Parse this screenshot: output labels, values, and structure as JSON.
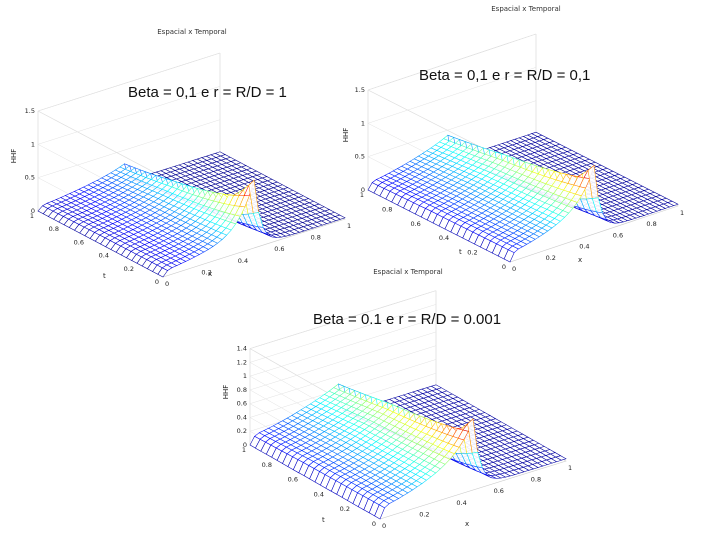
{
  "captions": {
    "top_left": "Beta = 0,1 e r = R/D = 1",
    "top_right": "Beta = 0,1 e r = R/D = 0,1",
    "bottom": "Beta = 0.1 e r = R/D = 0.001"
  },
  "chart_data": [
    {
      "type": "surface",
      "title": "Espacial x Temporal",
      "xlabel": "x",
      "ylabel": "t",
      "zlabel": "HHF",
      "zlim": [
        0,
        1.5
      ],
      "z_ticks": [
        "0",
        "0.5",
        "1",
        "1.5"
      ],
      "x_ticks": [
        "0",
        "0.2",
        "0.4",
        "0.6",
        "0.8",
        "1"
      ],
      "t_ticks": [
        "0",
        "0.2",
        "0.4",
        "0.6",
        "0.8",
        "1"
      ],
      "peak": {
        "x": 0.5,
        "t": 0.0,
        "z": 1.0
      },
      "plateau_z": 0.35,
      "colormap": "jet"
    },
    {
      "type": "surface",
      "title": "Espacial x Temporal",
      "xlabel": "x",
      "ylabel": "t",
      "zlabel": "HHF",
      "zlim": [
        0,
        1.5
      ],
      "z_ticks": [
        "0",
        "0.5",
        "1",
        "1.5"
      ],
      "x_ticks": [
        "0",
        "0.2",
        "0.4",
        "0.6",
        "0.8",
        "1"
      ],
      "t_ticks": [
        "0",
        "0.2",
        "0.4",
        "0.6",
        "0.8",
        "1"
      ],
      "peak": {
        "x": 0.5,
        "t": 0.0,
        "z": 1.0
      },
      "plateau_z": 0.55,
      "colormap": "jet"
    },
    {
      "type": "surface",
      "title": "Espacial x Temporal",
      "xlabel": "x",
      "ylabel": "t",
      "zlabel": "HHF",
      "zlim": [
        0,
        1.4
      ],
      "z_ticks": [
        "0",
        "0.2",
        "0.4",
        "0.6",
        "0.8",
        "1",
        "1.2",
        "1.4"
      ],
      "x_ticks": [
        "0",
        "0.2",
        "0.4",
        "0.6",
        "0.8",
        "1"
      ],
      "t_ticks": [
        "0",
        "0.2",
        "0.4",
        "0.6",
        "0.8",
        "1"
      ],
      "peak": {
        "x": 0.5,
        "t": 0.0,
        "z": 1.0
      },
      "plateau_z": 0.65,
      "colormap": "jet"
    }
  ]
}
